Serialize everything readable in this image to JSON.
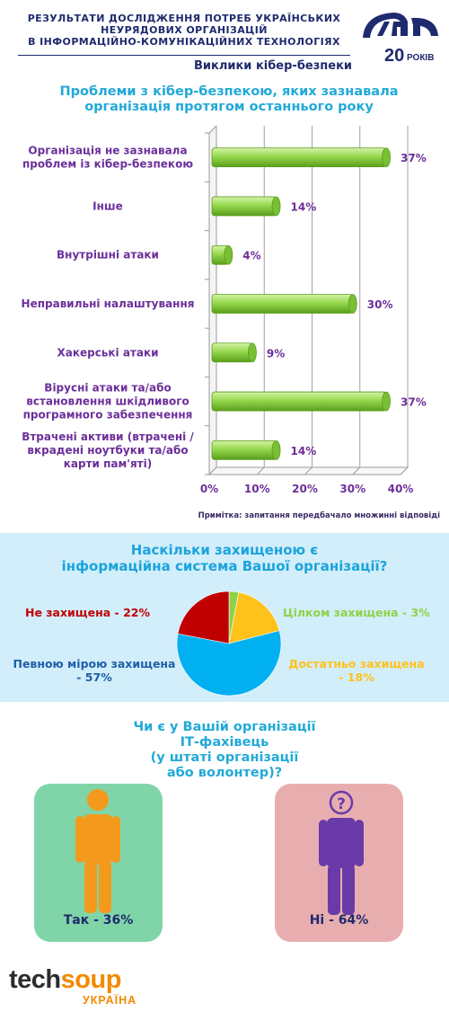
{
  "header": {
    "title_lines": [
      "РЕЗУЛЬТАТИ ДОСЛІДЖЕННЯ ПОТРЕБ УКРАЇНСЬКИХ",
      "НЕУРЯДОВИХ ОРГАНІЗАЦІЙ",
      "В ІНФОРМАЦІЙНО-КОМУНІКАЦІЙНИХ ТЕХНОЛОГІЯХ"
    ],
    "subtitle": "Виклики кібер-безпеки",
    "logo_number": "20",
    "logo_word": "РОКІВ"
  },
  "colors": {
    "navy": "#1f2a6e",
    "title_blue": "#21a9d8",
    "purple": "#6b2f9a",
    "bar_green": "#8fd24a",
    "bar_green_dark": "#5a9e1c",
    "pie_panel": "#d2eefa",
    "yes_card": "#80d5a8",
    "no_card": "#e8aeaf",
    "yes_person": "#f39a1d",
    "no_person": "#6a3aa8",
    "techsoup_orange": "#f18a00"
  },
  "q1": {
    "title_lines": [
      "Проблеми з кібер-безпекою, яких зазнавала",
      "організація протягом останнього року"
    ],
    "note": "Примітка: запитання передбачало множинні відповіді"
  },
  "q2": {
    "title_lines": [
      "Наскільки захищеною є",
      "інформаційна система Вашої організації?"
    ],
    "labels": {
      "not_protected": "Не захищена - 22%",
      "fully": "Цілком захищена - 3%",
      "partly_1": "Певною мірою захищена",
      "partly_2": "- 57%",
      "enough_1": "Достатньо захищена",
      "enough_2": "- 18%"
    }
  },
  "q3": {
    "title_lines": [
      "Чи є у Вашій організації",
      "ІТ-фахівець",
      "(у штаті організації",
      "або волонтер)?"
    ],
    "yes_label": "Так - 36%",
    "no_label": "Ні - 64%",
    "yes_icon": "person-icon",
    "no_icon": "person-question-icon"
  },
  "footer": {
    "logo_a": "tech",
    "logo_b": "soup",
    "logo_sub": "УКРАЇНА"
  },
  "chart_data": [
    {
      "type": "bar",
      "orientation": "horizontal",
      "title": "Проблеми з кібер-безпекою, яких зазнавала організація протягом останнього року",
      "categories": [
        [
          "Організація не зазнавала",
          "проблем із кібер-безпекою"
        ],
        [
          "Інше"
        ],
        [
          "Внутрішні атаки"
        ],
        [
          "Неправильні налаштування"
        ],
        [
          "Хакерські атаки"
        ],
        [
          "Вірусні атаки та/або",
          "встановлення шкідливого",
          "програмного забезпечення"
        ],
        [
          "Втрачені активи (втрачені /",
          "вкрадені ноутбуки та/або",
          "карти пам'яті)"
        ]
      ],
      "values": [
        37,
        14,
        4,
        30,
        9,
        37,
        14
      ],
      "value_labels": [
        "37%",
        "14%",
        "4%",
        "30%",
        "9%",
        "37%",
        "14%"
      ],
      "xlim": [
        0,
        40
      ],
      "xticks": [
        "0%",
        "10%",
        "20%",
        "30%",
        "40%"
      ],
      "grid": true
    },
    {
      "type": "pie",
      "title": "Наскільки захищеною є інформаційна система Вашої організації?",
      "categories": [
        "Цілком захищена",
        "Достатньо захищена",
        "Певною мірою захищена",
        "Не захищена"
      ],
      "values": [
        3,
        18,
        57,
        22
      ],
      "colors": [
        "#8fd24a",
        "#ffc21a",
        "#00b0f0",
        "#c00000"
      ]
    },
    {
      "type": "table",
      "title": "Чи є у Вашій організації ІТ-фахівець (у штаті організації або волонтер)?",
      "categories": [
        "Так",
        "Ні"
      ],
      "values": [
        36,
        64
      ]
    }
  ]
}
